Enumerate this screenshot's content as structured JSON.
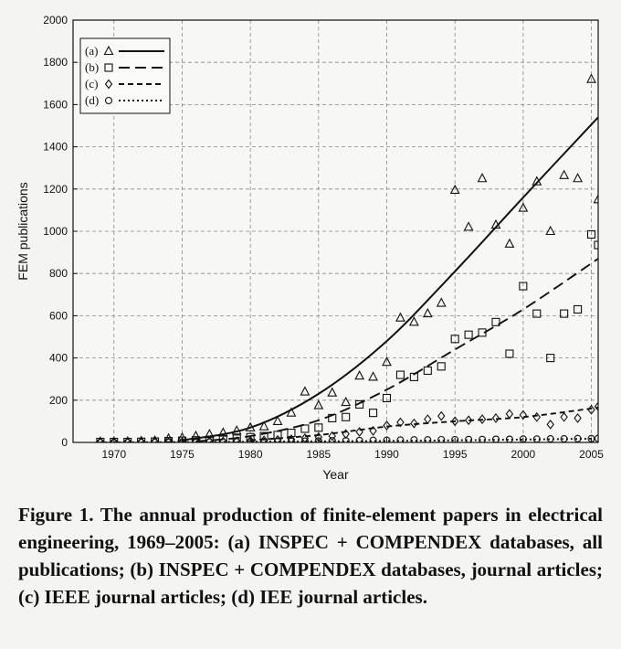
{
  "chart_data": {
    "type": "scatter",
    "xlabel": "Year",
    "ylabel": "FEM publications",
    "xlim": [
      1967,
      2005.5
    ],
    "ylim": [
      0,
      2000
    ],
    "xticks": [
      1970,
      1975,
      1980,
      1985,
      1990,
      1995,
      2000,
      2005
    ],
    "yticks": [
      0,
      200,
      400,
      600,
      800,
      1000,
      1200,
      1400,
      1600,
      1800,
      2000
    ],
    "grid": true,
    "legend_position": "top-left",
    "series": [
      {
        "name": "(a)",
        "marker": "triangle",
        "line": "solid",
        "points": [
          [
            1969,
            3
          ],
          [
            1970,
            3
          ],
          [
            1971,
            4
          ],
          [
            1972,
            6
          ],
          [
            1973,
            8
          ],
          [
            1974,
            18
          ],
          [
            1975,
            22
          ],
          [
            1976,
            30
          ],
          [
            1977,
            38
          ],
          [
            1978,
            45
          ],
          [
            1979,
            55
          ],
          [
            1980,
            70
          ],
          [
            1981,
            75
          ],
          [
            1982,
            100
          ],
          [
            1983,
            140
          ],
          [
            1984,
            240
          ],
          [
            1985,
            175
          ],
          [
            1986,
            235
          ],
          [
            1987,
            190
          ],
          [
            1988,
            315
          ],
          [
            1989,
            310
          ],
          [
            1990,
            380
          ],
          [
            1991,
            590
          ],
          [
            1992,
            570
          ],
          [
            1993,
            610
          ],
          [
            1994,
            660
          ],
          [
            1995,
            1195
          ],
          [
            1996,
            1020
          ],
          [
            1997,
            1250
          ],
          [
            1998,
            1030
          ],
          [
            1999,
            940
          ],
          [
            2000,
            1110
          ],
          [
            2001,
            1235
          ],
          [
            2002,
            1000
          ],
          [
            2003,
            1265
          ],
          [
            2004,
            1250
          ],
          [
            2005,
            1720
          ],
          [
            2005.5,
            1150
          ]
        ],
        "fit": [
          [
            1975,
            10
          ],
          [
            1980,
            70
          ],
          [
            1985,
            230
          ],
          [
            1990,
            480
          ],
          [
            1995,
            810
          ],
          [
            2000,
            1160
          ],
          [
            2005.5,
            1540
          ]
        ]
      },
      {
        "name": "(b)",
        "marker": "square",
        "line": "dashed",
        "points": [
          [
            1969,
            2
          ],
          [
            1970,
            2
          ],
          [
            1971,
            2
          ],
          [
            1972,
            3
          ],
          [
            1973,
            4
          ],
          [
            1974,
            6
          ],
          [
            1975,
            8
          ],
          [
            1976,
            10
          ],
          [
            1977,
            12
          ],
          [
            1978,
            15
          ],
          [
            1979,
            18
          ],
          [
            1980,
            25
          ],
          [
            1981,
            30
          ],
          [
            1982,
            35
          ],
          [
            1983,
            45
          ],
          [
            1984,
            65
          ],
          [
            1985,
            70
          ],
          [
            1986,
            115
          ],
          [
            1987,
            120
          ],
          [
            1988,
            180
          ],
          [
            1989,
            140
          ],
          [
            1990,
            210
          ],
          [
            1991,
            320
          ],
          [
            1992,
            310
          ],
          [
            1993,
            340
          ],
          [
            1994,
            360
          ],
          [
            1995,
            490
          ],
          [
            1996,
            510
          ],
          [
            1997,
            520
          ],
          [
            1998,
            570
          ],
          [
            1999,
            420
          ],
          [
            2000,
            740
          ],
          [
            2001,
            610
          ],
          [
            2002,
            400
          ],
          [
            2003,
            610
          ],
          [
            2004,
            630
          ],
          [
            2005,
            985
          ],
          [
            2005.5,
            935
          ]
        ],
        "fit": [
          [
            1976,
            5
          ],
          [
            1980,
            30
          ],
          [
            1985,
            105
          ],
          [
            1990,
            250
          ],
          [
            1995,
            440
          ],
          [
            2000,
            630
          ],
          [
            2005.5,
            870
          ]
        ]
      },
      {
        "name": "(c)",
        "marker": "diamond",
        "line": "short-dashed",
        "points": [
          [
            1969,
            1
          ],
          [
            1970,
            1
          ],
          [
            1971,
            1
          ],
          [
            1972,
            1
          ],
          [
            1973,
            2
          ],
          [
            1974,
            2
          ],
          [
            1975,
            2
          ],
          [
            1976,
            3
          ],
          [
            1977,
            4
          ],
          [
            1978,
            5
          ],
          [
            1979,
            6
          ],
          [
            1980,
            8
          ],
          [
            1981,
            10
          ],
          [
            1982,
            12
          ],
          [
            1983,
            15
          ],
          [
            1984,
            20
          ],
          [
            1985,
            25
          ],
          [
            1986,
            30
          ],
          [
            1987,
            40
          ],
          [
            1988,
            50
          ],
          [
            1989,
            55
          ],
          [
            1990,
            80
          ],
          [
            1991,
            95
          ],
          [
            1992,
            90
          ],
          [
            1993,
            110
          ],
          [
            1994,
            125
          ],
          [
            1995,
            100
          ],
          [
            1996,
            105
          ],
          [
            1997,
            110
          ],
          [
            1998,
            115
          ],
          [
            1999,
            135
          ],
          [
            2000,
            130
          ],
          [
            2001,
            120
          ],
          [
            2002,
            85
          ],
          [
            2003,
            120
          ],
          [
            2004,
            115
          ],
          [
            2005,
            155
          ],
          [
            2005.5,
            170
          ]
        ],
        "fit": [
          [
            1980,
            10
          ],
          [
            1985,
            35
          ],
          [
            1990,
            75
          ],
          [
            1995,
            100
          ],
          [
            2000,
            120
          ],
          [
            2005.5,
            165
          ]
        ]
      },
      {
        "name": "(d)",
        "marker": "circle",
        "line": "dotted",
        "points": [
          [
            1969,
            0
          ],
          [
            1970,
            0
          ],
          [
            1971,
            0
          ],
          [
            1972,
            0
          ],
          [
            1973,
            1
          ],
          [
            1974,
            1
          ],
          [
            1975,
            1
          ],
          [
            1976,
            1
          ],
          [
            1977,
            2
          ],
          [
            1978,
            2
          ],
          [
            1979,
            3
          ],
          [
            1980,
            3
          ],
          [
            1981,
            4
          ],
          [
            1982,
            5
          ],
          [
            1983,
            5
          ],
          [
            1984,
            6
          ],
          [
            1985,
            7
          ],
          [
            1986,
            8
          ],
          [
            1987,
            8
          ],
          [
            1988,
            9
          ],
          [
            1989,
            10
          ],
          [
            1990,
            10
          ],
          [
            1991,
            11
          ],
          [
            1992,
            12
          ],
          [
            1993,
            12
          ],
          [
            1994,
            13
          ],
          [
            1995,
            13
          ],
          [
            1996,
            14
          ],
          [
            1997,
            14
          ],
          [
            1998,
            15
          ],
          [
            1999,
            15
          ],
          [
            2000,
            16
          ],
          [
            2001,
            16
          ],
          [
            2002,
            17
          ],
          [
            2003,
            17
          ],
          [
            2004,
            18
          ],
          [
            2005,
            18
          ],
          [
            2005.5,
            19
          ]
        ],
        "fit": [
          [
            1969,
            0
          ],
          [
            1985,
            5
          ],
          [
            1995,
            10
          ],
          [
            2005.5,
            18
          ]
        ]
      }
    ]
  },
  "caption": "Figure 1. The annual production of finite-element papers in electrical engineering, 1969–2005: (a) INSPEC + COMPENDEX databases, all publications; (b) INSPEC + COMPENDEX databases, journal articles; (c) IEEE journal articles; (d) IEE journal articles."
}
